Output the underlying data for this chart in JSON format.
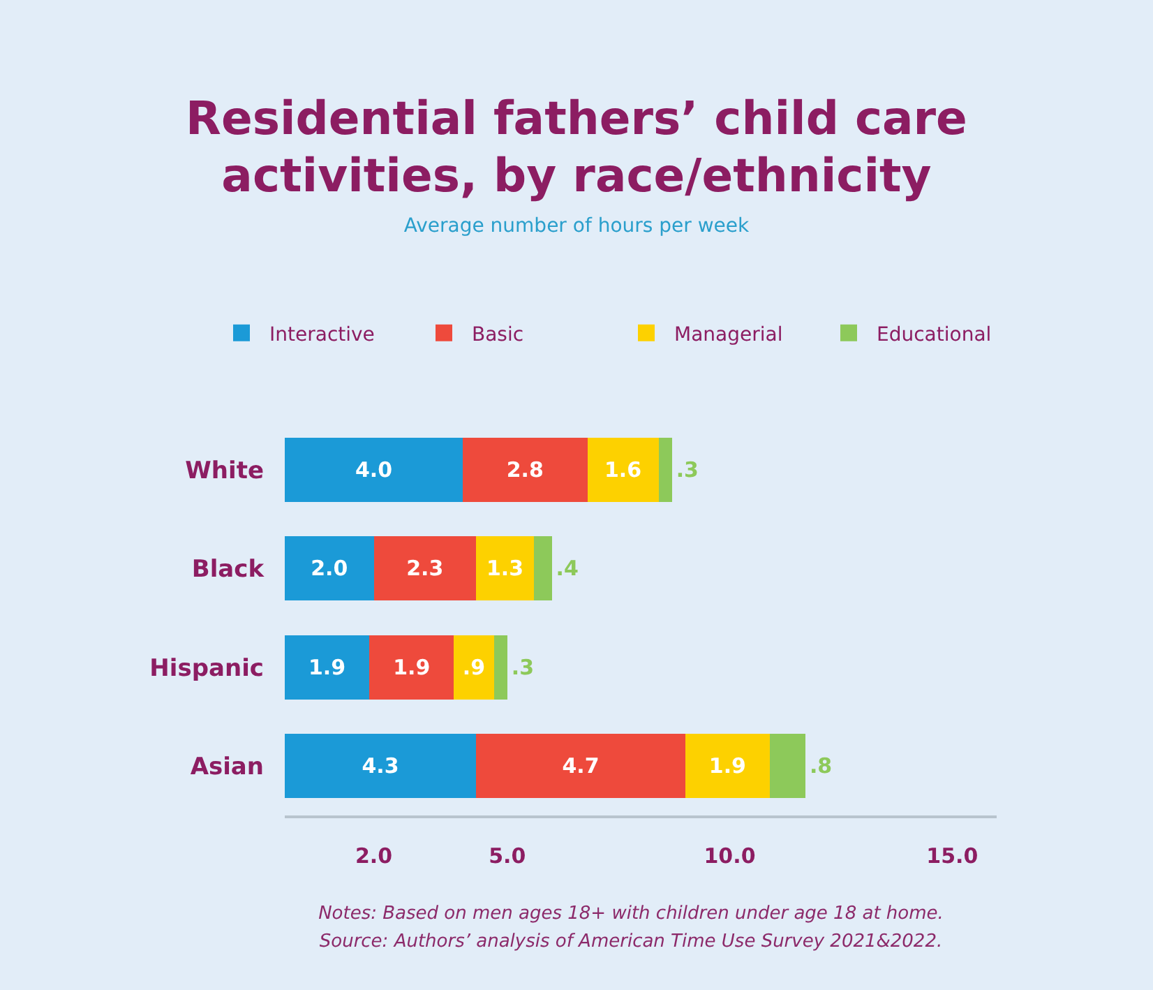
{
  "chart_data": {
    "type": "bar",
    "orientation": "horizontal",
    "stacked": true,
    "title": "Residential fathers’ child care activities, by race/ethnicity",
    "subtitle": "Average number of hours per week",
    "categories": [
      "White",
      "Black",
      "Hispanic",
      "Asian"
    ],
    "series": [
      {
        "name": "Interactive",
        "color": "#1b9ad7",
        "values": [
          4.0,
          2.0,
          1.9,
          4.3
        ],
        "value_labels": [
          "4.0",
          "2.0",
          "1.9",
          "4.3"
        ]
      },
      {
        "name": "Basic",
        "color": "#ee4a3c",
        "values": [
          2.8,
          2.3,
          1.9,
          4.7
        ],
        "value_labels": [
          "2.8",
          "2.3",
          "1.9",
          "4.7"
        ]
      },
      {
        "name": "Managerial",
        "color": "#fdd100",
        "values": [
          1.6,
          1.3,
          0.9,
          1.9
        ],
        "value_labels": [
          "1.6",
          "1.3",
          ".9",
          "1.9"
        ]
      },
      {
        "name": "Educational",
        "color": "#8dc95a",
        "values": [
          0.3,
          0.4,
          0.3,
          0.8
        ],
        "value_labels": [
          ".3",
          ".4",
          ".3",
          ".8"
        ]
      }
    ],
    "xlim": [
      0,
      16
    ],
    "xticks": [
      {
        "value": 2,
        "label": "2.0"
      },
      {
        "value": 5,
        "label": "5.0"
      },
      {
        "value": 10,
        "label": "10.0"
      },
      {
        "value": 15,
        "label": "15.0"
      }
    ],
    "legend": "top",
    "annotations": [
      "Notes: Based on men ages 18+ with children under age 18 at home.",
      "Source: Authors’ analysis of American Time Use Survey 2021&2022."
    ]
  }
}
